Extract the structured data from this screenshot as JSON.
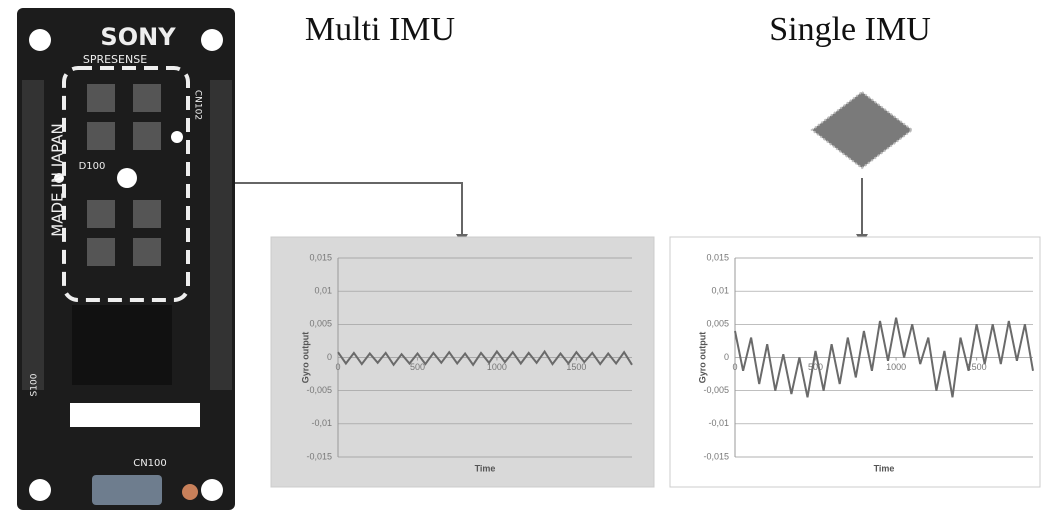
{
  "board": {
    "brand": "SONY",
    "product": "SPRESENSE",
    "origin": "MADE IN JAPAN",
    "labels": [
      "D100",
      "CN102",
      "S100",
      "CN100"
    ]
  },
  "chart_data": [
    {
      "type": "line",
      "title": "Multi IMU",
      "xlabel": "Time",
      "ylabel": "Gyro output",
      "background": "#d9d9d9",
      "grid": true,
      "xlim": [
        0,
        1850
      ],
      "xticks": [
        0,
        500,
        1000,
        1500
      ],
      "ylim": [
        -0.015,
        0.015
      ],
      "yticks": [
        {
          "value": 0.015,
          "label": "0,015"
        },
        {
          "value": 0.01,
          "label": "0,01"
        },
        {
          "value": 0.005,
          "label": "0,005"
        },
        0,
        {
          "value": -0.005,
          "label": "-0,005"
        },
        {
          "value": -0.01,
          "label": "-0,01"
        },
        {
          "value": -0.015,
          "label": "-0,015"
        }
      ],
      "x": [
        0,
        50,
        100,
        150,
        200,
        250,
        300,
        350,
        400,
        450,
        500,
        550,
        600,
        650,
        700,
        750,
        800,
        850,
        900,
        950,
        1000,
        1050,
        1100,
        1150,
        1200,
        1250,
        1300,
        1350,
        1400,
        1450,
        1500,
        1550,
        1600,
        1650,
        1700,
        1750,
        1800,
        1850
      ],
      "series": [
        {
          "color": "#6a6a6a",
          "values": [
            0.0008,
            -0.0009,
            0.0007,
            -0.001,
            0.0006,
            -0.0008,
            0.0007,
            -0.0011,
            0.0005,
            -0.0009,
            0.0006,
            -0.001,
            0.0007,
            -0.0008,
            0.0008,
            -0.0009,
            0.0006,
            -0.0011,
            0.0007,
            -0.0008,
            0.0009,
            -0.0007,
            0.0008,
            -0.0009,
            0.0007,
            -0.0008,
            0.0009,
            -0.001,
            0.0006,
            -0.0009,
            0.0008,
            -0.0007,
            0.0007,
            -0.001,
            0.0006,
            -0.0009,
            0.0008,
            -0.0011
          ]
        }
      ]
    },
    {
      "type": "line",
      "title": "Single IMU",
      "xlabel": "Time",
      "ylabel": "Gyro output",
      "background": "#ffffff",
      "grid": true,
      "xlim": [
        0,
        1850
      ],
      "xticks": [
        0,
        500,
        1000,
        1500
      ],
      "ylim": [
        -0.015,
        0.015
      ],
      "yticks": [
        {
          "value": 0.015,
          "label": "0,015"
        },
        {
          "value": 0.01,
          "label": "0,01"
        },
        {
          "value": 0.005,
          "label": "0,005"
        },
        0,
        {
          "value": -0.005,
          "label": "-0,005"
        },
        {
          "value": -0.01,
          "label": "-0,01"
        },
        {
          "value": -0.015,
          "label": "-0,015"
        }
      ],
      "x": [
        0,
        50,
        100,
        150,
        200,
        250,
        300,
        350,
        400,
        450,
        500,
        550,
        600,
        650,
        700,
        750,
        800,
        850,
        900,
        950,
        1000,
        1050,
        1100,
        1150,
        1200,
        1250,
        1300,
        1350,
        1400,
        1450,
        1500,
        1550,
        1600,
        1650,
        1700,
        1750,
        1800,
        1850
      ],
      "series": [
        {
          "color": "#6a6a6a",
          "values": [
            0.004,
            -0.002,
            0.003,
            -0.004,
            0.002,
            -0.005,
            0.0005,
            -0.0055,
            0,
            -0.006,
            0.001,
            -0.005,
            0.002,
            -0.004,
            0.003,
            -0.003,
            0.004,
            -0.002,
            0.0055,
            -0.0005,
            0.006,
            0,
            0.005,
            -0.001,
            0.003,
            -0.005,
            0.001,
            -0.006,
            0.003,
            -0.002,
            0.005,
            -0.001,
            0.005,
            -0.001,
            0.0055,
            -0.0005,
            0.005,
            -0.002
          ]
        }
      ]
    }
  ]
}
